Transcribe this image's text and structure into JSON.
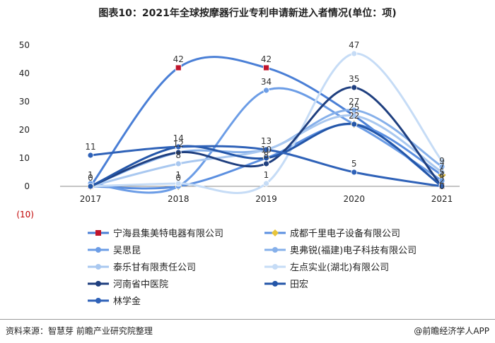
{
  "chart_data": {
    "type": "line",
    "title": "图表10：2021年全球按摩器行业专利申请新进入者情况(单位：项)",
    "categories": [
      "2017",
      "2018",
      "2019",
      "2020",
      "2021"
    ],
    "ylim": [
      -10,
      50
    ],
    "yticks": [
      "50",
      "40",
      "30",
      "20",
      "10",
      "0",
      "(10)"
    ],
    "grid": false,
    "legend_position": "bottom",
    "series": [
      {
        "name": "宁海县集美特电器有限公司",
        "values": [
          0,
          42,
          42,
          25,
          0
        ],
        "color": "#4a7fd6",
        "marker": "square-red"
      },
      {
        "name": "成都千里电子设备有限公司",
        "values": [
          0,
          0,
          10,
          22,
          4
        ],
        "color": "#5b8fe0",
        "marker": "diamond-yellow"
      },
      {
        "name": "吴思昆",
        "values": [
          1,
          0,
          34,
          22,
          2
        ],
        "color": "#6c9de6",
        "marker": "circle"
      },
      {
        "name": "奥弗锐(福建)电子科技有限公司",
        "values": [
          0,
          12,
          13,
          27,
          7
        ],
        "color": "#86b0ea",
        "marker": "circle"
      },
      {
        "name": "泰乐甘有限责任公司",
        "values": [
          0,
          8,
          13,
          25,
          5
        ],
        "color": "#a9c8f0",
        "marker": "circle"
      },
      {
        "name": "左点实业(湖北)有限公司",
        "values": [
          0,
          1,
          1,
          47,
          9
        ],
        "color": "#c6dcf6",
        "marker": "circle"
      },
      {
        "name": "河南省中医院",
        "values": [
          0,
          12,
          8,
          35,
          0
        ],
        "color": "#1f3f7f",
        "marker": "circle"
      },
      {
        "name": "田宏",
        "values": [
          0,
          14,
          10,
          22,
          0
        ],
        "color": "#2456a8",
        "marker": "circle"
      },
      {
        "name": "林学金",
        "values": [
          11,
          14,
          13,
          5,
          0
        ],
        "color": "#2f62b8",
        "marker": "circle"
      }
    ],
    "data_labels": [
      {
        "x": "2017",
        "text": "11"
      },
      {
        "x": "2017",
        "text": "1"
      },
      {
        "x": "2017",
        "text": "0"
      },
      {
        "x": "2018",
        "text": "42"
      },
      {
        "x": "2018",
        "text": "14"
      },
      {
        "x": "2018",
        "text": "12"
      },
      {
        "x": "2018",
        "text": "8"
      },
      {
        "x": "2018",
        "text": "1"
      },
      {
        "x": "2018",
        "text": "0"
      },
      {
        "x": "2019",
        "text": "42"
      },
      {
        "x": "2019",
        "text": "34"
      },
      {
        "x": "2019",
        "text": "13"
      },
      {
        "x": "2019",
        "text": "10"
      },
      {
        "x": "2019",
        "text": "8"
      },
      {
        "x": "2019",
        "text": "1"
      },
      {
        "x": "2020",
        "text": "47"
      },
      {
        "x": "2020",
        "text": "35"
      },
      {
        "x": "2020",
        "text": "27"
      },
      {
        "x": "2020",
        "text": "25"
      },
      {
        "x": "2020",
        "text": "22"
      },
      {
        "x": "2020",
        "text": "5"
      },
      {
        "x": "2021",
        "text": "9"
      },
      {
        "x": "2021",
        "text": "7"
      },
      {
        "x": "2021",
        "text": "5"
      },
      {
        "x": "2021",
        "text": "4"
      },
      {
        "x": "2021",
        "text": "2"
      },
      {
        "x": "2021",
        "text": "0"
      }
    ]
  },
  "footer": {
    "source": "资料来源：智慧芽 前瞻产业研究院整理",
    "brand": "@前瞻经济学人APP"
  }
}
